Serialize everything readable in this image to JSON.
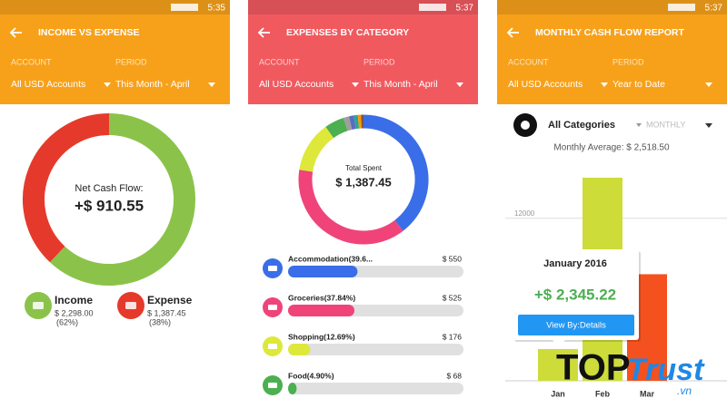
{
  "screens": [
    {
      "time": "5:35",
      "title": "INCOME VS EXPENSE",
      "color": "#f7a11a",
      "filters": {
        "account_label": "ACCOUNT",
        "account": "All USD Accounts",
        "period_label": "PERIOD",
        "period": "This Month - April"
      },
      "center_label": "Net Cash Flow:",
      "center_value": "+$ 910.55",
      "legend": [
        {
          "name": "Income",
          "amount": "$ 2,298.00",
          "share": {
            "value": 62,
            "label": "(62%)"
          },
          "color": "#8bc34a"
        },
        {
          "name": "Expense",
          "amount": "$ 1,387.45",
          "share": {
            "value": 38,
            "label": "(38%)"
          },
          "color": "#e53a2b"
        }
      ]
    },
    {
      "time": "5:37",
      "title": "EXPENSES BY CATEGORY",
      "color": "#f05a5f",
      "filters": {
        "account_label": "ACCOUNT",
        "account": "All USD Accounts",
        "period_label": "PERIOD",
        "period": "This Month - April"
      },
      "center_label": "Total Spent",
      "center_value": "$ 1,387.45",
      "categories": [
        {
          "label": "Accommodation(39.6...",
          "percent": 39.6,
          "amount": "$ 550",
          "color": "#3a6ee8"
        },
        {
          "label": "Groceries(37.84%)",
          "percent": 37.84,
          "amount": "$ 525",
          "color": "#f0437a"
        },
        {
          "label": "Shopping(12.69%)",
          "percent": 12.69,
          "amount": "$ 176",
          "color": "#dde83a"
        },
        {
          "label": "Food(4.90%)",
          "percent": 4.9,
          "amount": "$ 68",
          "color": "#4caf50"
        }
      ],
      "other_slices": [
        {
          "value": 1.4,
          "color": "#9e9e9e"
        },
        {
          "value": 1.2,
          "color": "#5c6bc0"
        },
        {
          "value": 1.0,
          "color": "#26a69a"
        },
        {
          "value": 0.8,
          "color": "#ff9800"
        },
        {
          "value": 0.6,
          "color": "#795548"
        }
      ]
    },
    {
      "time": "5:37",
      "title": "MONTHLY CASH FLOW REPORT",
      "color": "#f7a11a",
      "filters": {
        "account_label": "ACCOUNT",
        "account": "All USD Accounts",
        "period_label": "PERIOD",
        "period": "Year to Date"
      },
      "category": "All Categories",
      "view": "MONTHLY",
      "average": "Monthly Average: $ 2,518.50",
      "chart": {
        "type": "bar",
        "categories": [
          "Jan",
          "Feb",
          "Mar"
        ],
        "values": [
          2345.22,
          15000,
          7870
        ],
        "colors": [
          "#cddc39",
          "#cddc39",
          "#f4511e"
        ],
        "ylim": [
          0,
          15400
        ],
        "yticks": [
          12000
        ]
      },
      "tooltip": {
        "title": "January 2016",
        "value": "+$ 2,345.22",
        "button": "View By:Details"
      }
    }
  ],
  "watermark": {
    "brand": "TOP",
    "brand2": "Trust",
    "domain": ".vn"
  }
}
